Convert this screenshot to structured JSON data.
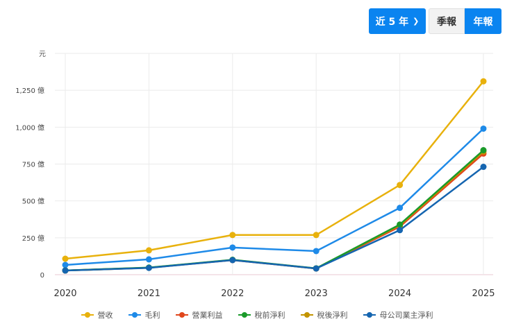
{
  "controls": {
    "range_label": "近 5 年",
    "quarterly_label": "季報",
    "annual_label": "年報",
    "active": "年報"
  },
  "chart_data": {
    "type": "line",
    "unit_label": "元",
    "categories": [
      "2020",
      "2021",
      "2022",
      "2023",
      "2024",
      "2025"
    ],
    "ylim": [
      0,
      1500
    ],
    "yticks": [
      {
        "v": 0,
        "label": "0"
      },
      {
        "v": 250,
        "label": "250 億"
      },
      {
        "v": 500,
        "label": "500 億"
      },
      {
        "v": 750,
        "label": "750 億"
      },
      {
        "v": 1000,
        "label": "1,000 億"
      },
      {
        "v": 1250,
        "label": "1,250 億"
      }
    ],
    "grid": true,
    "legend_position": "bottom",
    "series": [
      {
        "name": "營收",
        "color": "#e8b10c",
        "values": [
          108,
          165,
          269,
          269,
          608,
          1311
        ]
      },
      {
        "name": "毛利",
        "color": "#1e8ae8",
        "values": [
          66,
          104,
          184,
          160,
          453,
          990
        ]
      },
      {
        "name": "營業利益",
        "color": "#e0461c",
        "values": [
          28,
          47,
          99,
          42,
          325,
          821
        ]
      },
      {
        "name": "稅前淨利",
        "color": "#1a9a2a",
        "values": [
          29,
          48,
          101,
          43,
          340,
          844
        ]
      },
      {
        "name": "稅後淨利",
        "color": "#c39400",
        "values": [
          28,
          47,
          100,
          42,
          335,
          835
        ]
      },
      {
        "name": "母公司業主淨利",
        "color": "#1565b0",
        "values": [
          28,
          46,
          99,
          42,
          302,
          731
        ]
      }
    ]
  }
}
